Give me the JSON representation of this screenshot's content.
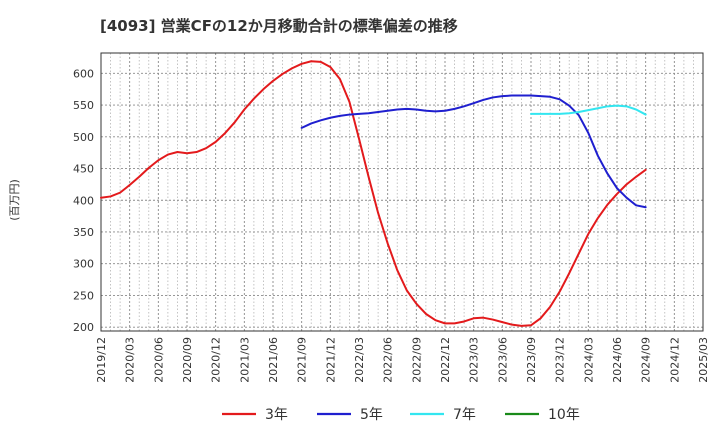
{
  "chart_data": {
    "type": "line",
    "title": "[4093]  営業CFの12か月移動合計の標準偏差の推移",
    "ylabel": "(百万円)",
    "xlabel": "",
    "ylim": [
      194,
      632
    ],
    "yticks": [
      200,
      250,
      300,
      350,
      400,
      450,
      500,
      550,
      600
    ],
    "xticks": [
      "2019/12",
      "2020/03",
      "2020/06",
      "2020/09",
      "2020/12",
      "2021/03",
      "2021/06",
      "2021/09",
      "2021/12",
      "2022/03",
      "2022/06",
      "2022/09",
      "2022/12",
      "2023/03",
      "2023/06",
      "2023/09",
      "2023/12",
      "2024/03",
      "2024/06",
      "2024/09",
      "2024/12",
      "2025/03"
    ],
    "grid": true,
    "legend_position": "bottom",
    "series": [
      {
        "name": "3年",
        "color": "#e31a1c",
        "x": [
          "2019/12",
          "2020/01",
          "2020/02",
          "2020/03",
          "2020/04",
          "2020/05",
          "2020/06",
          "2020/07",
          "2020/08",
          "2020/09",
          "2020/10",
          "2020/11",
          "2020/12",
          "2021/01",
          "2021/02",
          "2021/03",
          "2021/04",
          "2021/05",
          "2021/06",
          "2021/07",
          "2021/08",
          "2021/09",
          "2021/10",
          "2021/11",
          "2021/12",
          "2022/01",
          "2022/02",
          "2022/03",
          "2022/04",
          "2022/05",
          "2022/06",
          "2022/07",
          "2022/08",
          "2022/09",
          "2022/10",
          "2022/11",
          "2022/12",
          "2023/01",
          "2023/02",
          "2023/03",
          "2023/04",
          "2023/05",
          "2023/06",
          "2023/07",
          "2023/08",
          "2023/09",
          "2023/10",
          "2023/11",
          "2023/12",
          "2024/01",
          "2024/02",
          "2024/03",
          "2024/04",
          "2024/05",
          "2024/06",
          "2024/07",
          "2024/08",
          "2024/09"
        ],
        "values": [
          404,
          406,
          412,
          424,
          437,
          451,
          463,
          472,
          476,
          474,
          476,
          482,
          492,
          506,
          523,
          543,
          560,
          575,
          588,
          599,
          608,
          615,
          619,
          618,
          610,
          591,
          555,
          497,
          437,
          380,
          332,
          290,
          258,
          237,
          221,
          211,
          206,
          206,
          209,
          214,
          215,
          212,
          208,
          204,
          202,
          203,
          214,
          232,
          256,
          285,
          316,
          347,
          372,
          393,
          410,
          425,
          437,
          448
        ]
      },
      {
        "name": "5年",
        "color": "#1f1fcf",
        "x": [
          "2021/09",
          "2021/10",
          "2021/11",
          "2021/12",
          "2022/01",
          "2022/02",
          "2022/03",
          "2022/04",
          "2022/05",
          "2022/06",
          "2022/07",
          "2022/08",
          "2022/09",
          "2022/10",
          "2022/11",
          "2022/12",
          "2023/01",
          "2023/02",
          "2023/03",
          "2023/04",
          "2023/05",
          "2023/06",
          "2023/07",
          "2023/08",
          "2023/09",
          "2023/10",
          "2023/11",
          "2023/12",
          "2024/01",
          "2024/02",
          "2024/03",
          "2024/04",
          "2024/05",
          "2024/06",
          "2024/07",
          "2024/08",
          "2024/09"
        ],
        "values": [
          514,
          521,
          526,
          530,
          533,
          535,
          536,
          537,
          539,
          541,
          543,
          544,
          543,
          541,
          540,
          541,
          544,
          548,
          553,
          558,
          562,
          564,
          565,
          565,
          565,
          564,
          563,
          559,
          549,
          534,
          506,
          470,
          442,
          419,
          404,
          392,
          389
        ]
      },
      {
        "name": "7年",
        "color": "#33e6f0",
        "x": [
          "2023/09",
          "2023/10",
          "2023/11",
          "2023/12",
          "2024/01",
          "2024/02",
          "2024/03",
          "2024/04",
          "2024/05",
          "2024/06",
          "2024/07",
          "2024/08",
          "2024/09"
        ],
        "values": [
          536,
          536,
          536,
          536,
          537,
          539,
          542,
          545,
          548,
          549,
          548,
          543,
          535
        ]
      },
      {
        "name": "10年",
        "color": "#1a8a1a",
        "x": [],
        "values": []
      }
    ]
  }
}
